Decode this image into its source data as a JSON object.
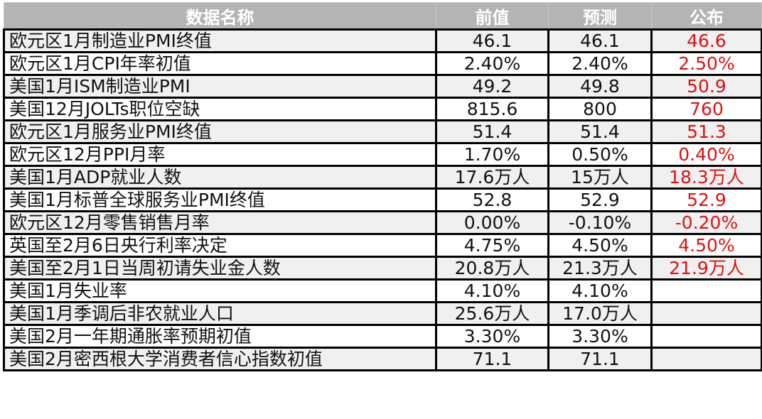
{
  "header": {
    "name": "数据名称",
    "previous": "前值",
    "forecast": "预测",
    "actual": "公布"
  },
  "colors": {
    "header_bg": "#b4b4b4",
    "actual_text": "#e01010",
    "stripe": "#f0f0f0"
  },
  "rows": [
    {
      "name": "欧元区1月制造业PMI终值",
      "previous": "46.1",
      "forecast": "46.1",
      "actual": "46.6"
    },
    {
      "name": "欧元区1月CPI年率初值",
      "previous": "2.40%",
      "forecast": "2.40%",
      "actual": "2.50%"
    },
    {
      "name": "美国1月ISM制造业PMI",
      "previous": "49.2",
      "forecast": "49.8",
      "actual": "50.9"
    },
    {
      "name": "美国12月JOLTs职位空缺",
      "previous": "815.6",
      "forecast": "800",
      "actual": "760"
    },
    {
      "name": "欧元区1月服务业PMI终值",
      "previous": "51.4",
      "forecast": "51.4",
      "actual": "51.3"
    },
    {
      "name": "欧元区12月PPI月率",
      "previous": "1.70%",
      "forecast": "0.50%",
      "actual": "0.40%"
    },
    {
      "name": "美国1月ADP就业人数",
      "previous": "17.6万人",
      "forecast": "15万人",
      "actual": "18.3万人"
    },
    {
      "name": "美国1月标普全球服务业PMI终值",
      "previous": "52.8",
      "forecast": "52.9",
      "actual": "52.9"
    },
    {
      "name": "欧元区12月零售销售月率",
      "previous": "0.00%",
      "forecast": "-0.10%",
      "actual": "-0.20%"
    },
    {
      "name": "英国至2月6日央行利率决定",
      "previous": "4.75%",
      "forecast": "4.50%",
      "actual": "4.50%"
    },
    {
      "name": "美国至2月1日当周初请失业金人数",
      "previous": "20.8万人",
      "forecast": "21.3万人",
      "actual": "21.9万人"
    },
    {
      "name": "美国1月失业率",
      "previous": "4.10%",
      "forecast": "4.10%",
      "actual": ""
    },
    {
      "name": "美国1月季调后非农就业人口",
      "previous": "25.6万人",
      "forecast": "17.0万人",
      "actual": ""
    },
    {
      "name": "美国2月一年期通胀率预期初值",
      "previous": "3.30%",
      "forecast": "3.30%",
      "actual": ""
    },
    {
      "name": "美国2月密西根大学消费者信心指数初值",
      "previous": "71.1",
      "forecast": "71.1",
      "actual": ""
    }
  ]
}
